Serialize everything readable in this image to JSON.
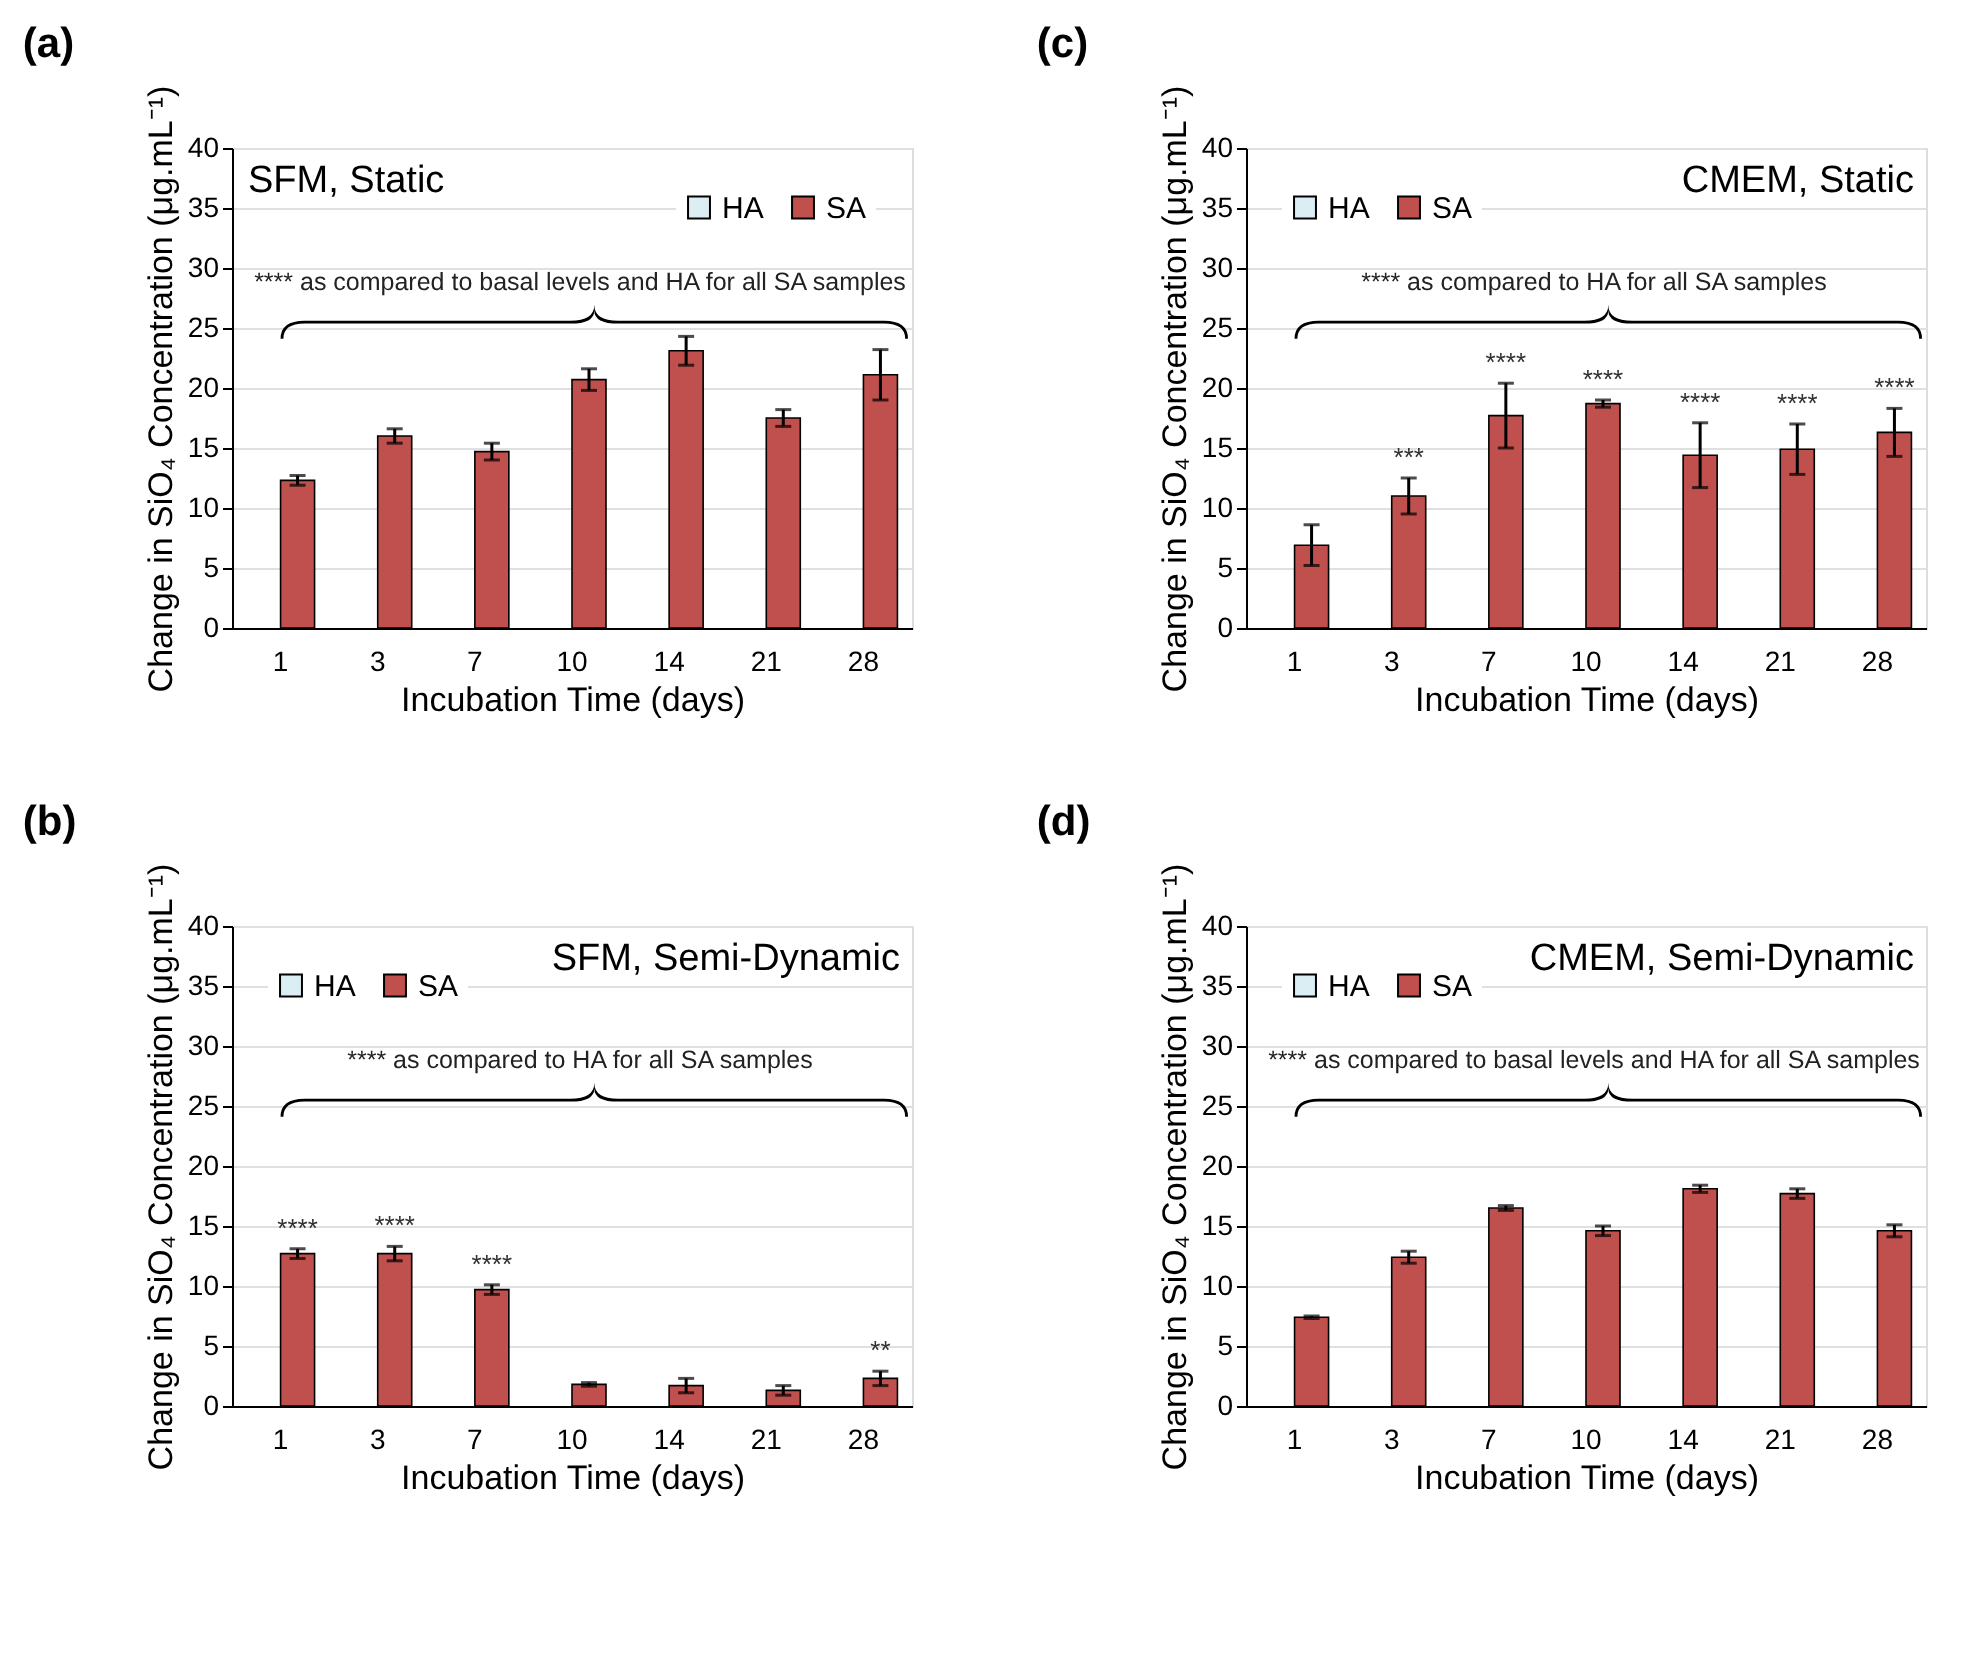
{
  "chart_data": [
    {
      "type": "bar",
      "title": "(a)",
      "subtitle": "SFM, Static",
      "xlabel": "Incubation Time (days)",
      "ylabel": "Change in SiO₄ Concentration (μg.mL⁻¹)",
      "categories": [
        "1",
        "3",
        "7",
        "10",
        "14",
        "21",
        "28"
      ],
      "series": [
        {
          "name": "HA",
          "color": "#dbeef4",
          "values": [
            null,
            null,
            null,
            null,
            null,
            null,
            null
          ]
        },
        {
          "name": "SA",
          "color": "#c0504d",
          "values": [
            12.3,
            16.0,
            14.7,
            20.7,
            23.1,
            17.5,
            21.1
          ],
          "errors": [
            0.4,
            0.6,
            0.7,
            0.9,
            1.2,
            0.7,
            2.1
          ]
        }
      ],
      "ylim": [
        0,
        40
      ],
      "yticks": [
        0,
        5,
        10,
        15,
        20,
        25,
        30,
        35,
        40
      ],
      "grid": "y",
      "legend": "top right",
      "annotations": [
        "**** as compared to basal levels and HA for all SA samples"
      ]
    },
    {
      "type": "bar",
      "title": "(c)",
      "subtitle": "CMEM, Static",
      "xlabel": "Incubation Time (days)",
      "ylabel": "Change in SiO₄ Concentration (μg.mL⁻¹)",
      "categories": [
        "1",
        "3",
        "7",
        "10",
        "14",
        "21",
        "28"
      ],
      "series": [
        {
          "name": "HA",
          "color": "#dbeef4",
          "values": [
            null,
            null,
            null,
            null,
            null,
            null,
            null
          ]
        },
        {
          "name": "SA",
          "color": "#c0504d",
          "values": [
            6.9,
            11.0,
            17.7,
            18.7,
            14.4,
            14.9,
            16.3
          ],
          "errors": [
            1.7,
            1.5,
            2.7,
            0.3,
            2.7,
            2.1,
            2.0
          ]
        }
      ],
      "ylim": [
        0,
        40
      ],
      "yticks": [
        0,
        5,
        10,
        15,
        20,
        25,
        30,
        35,
        40
      ],
      "grid": "y",
      "legend": "top left",
      "annotations": [
        "****  as compared to HA for all SA samples",
        {
          "text": "***",
          "x": "3",
          "y": 11.0
        },
        {
          "text": "****",
          "x": "7",
          "y": 17.7
        },
        {
          "text": "****",
          "x": "10",
          "y": 18.7
        },
        {
          "text": "****",
          "x": "14",
          "y": 14.4
        },
        {
          "text": "****",
          "x": "21",
          "y": 14.9
        },
        {
          "text": "****",
          "x": "28",
          "y": 16.3
        }
      ]
    },
    {
      "type": "bar",
      "title": "(b)",
      "subtitle": "SFM, Semi-Dynamic",
      "xlabel": "Incubation Time (days)",
      "ylabel": "Change in SiO₄ Concentration (μg.mL⁻¹)",
      "categories": [
        "1",
        "3",
        "7",
        "10",
        "14",
        "21",
        "28"
      ],
      "series": [
        {
          "name": "HA",
          "color": "#dbeef4",
          "values": [
            null,
            null,
            null,
            null,
            null,
            null,
            null
          ]
        },
        {
          "name": "SA",
          "color": "#c0504d",
          "values": [
            12.7,
            12.7,
            9.7,
            1.8,
            1.7,
            1.3,
            2.3
          ],
          "errors": [
            0.4,
            0.6,
            0.4,
            0.15,
            0.6,
            0.4,
            0.6
          ]
        }
      ],
      "ylim": [
        0,
        40
      ],
      "yticks": [
        0,
        5,
        10,
        15,
        20,
        25,
        30,
        35,
        40
      ],
      "grid": "y",
      "legend": "top left",
      "annotations": [
        "****  as compared to HA for all SA samples",
        {
          "text": "****",
          "x": "1",
          "y": 12.7
        },
        {
          "text": "****",
          "x": "3",
          "y": 12.7
        },
        {
          "text": "****",
          "x": "7",
          "y": 9.7
        },
        {
          "text": "**",
          "x": "28",
          "y": 2.3
        }
      ]
    },
    {
      "type": "bar",
      "title": "(d)",
      "subtitle": "CMEM, Semi-Dynamic",
      "xlabel": "Incubation Time (days)",
      "ylabel": "Change in SiO₄ Concentration (μg.mL⁻¹)",
      "categories": [
        "1",
        "3",
        "7",
        "10",
        "14",
        "21",
        "28"
      ],
      "series": [
        {
          "name": "HA",
          "color": "#dbeef4",
          "values": [
            null,
            null,
            null,
            null,
            null,
            null,
            null
          ]
        },
        {
          "name": "SA",
          "color": "#c0504d",
          "values": [
            7.4,
            12.4,
            16.5,
            14.6,
            18.1,
            17.7,
            14.6
          ],
          "errors": [
            0.1,
            0.5,
            0.2,
            0.4,
            0.3,
            0.4,
            0.5
          ]
        }
      ],
      "ylim": [
        0,
        40
      ],
      "yticks": [
        0,
        5,
        10,
        15,
        20,
        25,
        30,
        35,
        40
      ],
      "grid": "y",
      "legend": "top left",
      "annotations": [
        "****  as compared to basal levels and HA for all SA samples"
      ]
    }
  ]
}
